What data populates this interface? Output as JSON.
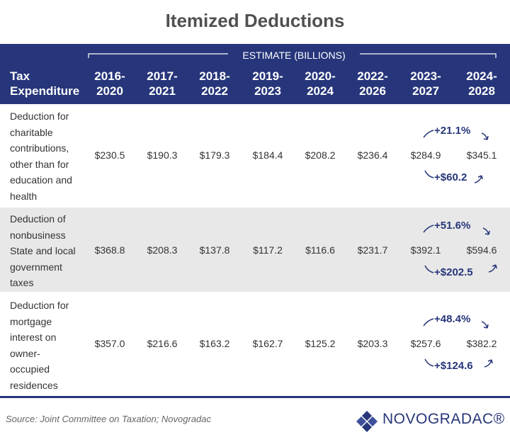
{
  "title": "Itemized Deductions",
  "table": {
    "group_header": "ESTIMATE (BILLIONS)",
    "columns": [
      [
        "Tax",
        "Expenditure"
      ],
      [
        "2016-",
        "2020"
      ],
      [
        "2017-",
        "2021"
      ],
      [
        "2018-",
        "2022"
      ],
      [
        "2019-",
        "2023"
      ],
      [
        "2020-",
        "2024"
      ],
      [
        "2022-",
        "2026"
      ],
      [
        "2023-",
        "2027"
      ],
      [
        "2024-",
        "2028"
      ]
    ],
    "rows": [
      {
        "label": [
          "Deduction for",
          "charitable",
          "contributions,",
          "other than for",
          "education and",
          "health"
        ],
        "cells": [
          "$230.5",
          "$190.3",
          "$179.3",
          "$184.4",
          "$208.2",
          "$236.4",
          "$284.9",
          "$345.1"
        ],
        "pct_change": "+21.1%",
        "abs_change": "+$60.2"
      },
      {
        "label": [
          "Deduction of",
          "nonbusiness",
          "State and local",
          "government",
          "taxes"
        ],
        "cells": [
          "$368.8",
          "$208.3",
          "$137.8",
          "$117.2",
          "$116.6",
          "$231.7",
          "$392.1",
          "$594.6"
        ],
        "pct_change": "+51.6%",
        "abs_change": "+$202.5"
      },
      {
        "label": [
          "Deduction for",
          "mortgage",
          "interest on",
          "owner-",
          "occupied",
          "residences"
        ],
        "cells": [
          "$357.0",
          "$216.6",
          "$163.2",
          "$162.7",
          "$125.2",
          "$203.3",
          "$257.6",
          "$382.2"
        ],
        "pct_change": "+48.4%",
        "abs_change": "+$124.6"
      }
    ]
  },
  "source": "Source: Joint Committee on Taxation; Novogradac",
  "logo": "NOVOGRADAC®"
}
